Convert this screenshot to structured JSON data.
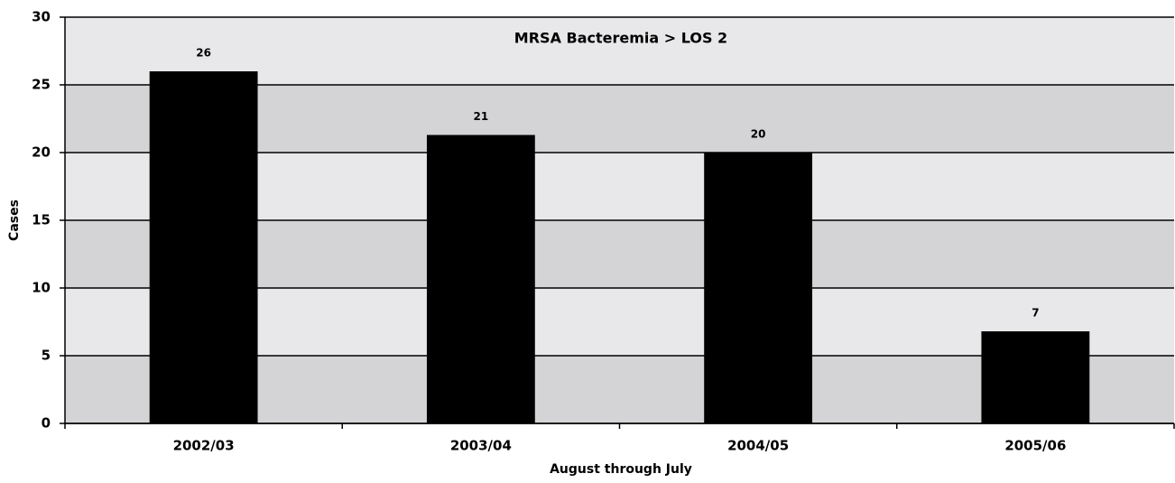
{
  "chart_data": {
    "type": "bar",
    "title": "MRSA Bacteremia > LOS 2",
    "x_label": "August through July",
    "y_label": "Cases",
    "categories": [
      "2002/03",
      "2003/04",
      "2004/05",
      "2005/06"
    ],
    "values": [
      26,
      21.3,
      20,
      6.8
    ],
    "value_labels": [
      "26",
      "21",
      "20",
      "7"
    ],
    "color": "#000000",
    "ylim": [
      0,
      30
    ],
    "yticks": [
      0,
      5,
      10,
      15,
      20,
      25,
      30
    ],
    "grid": true
  }
}
